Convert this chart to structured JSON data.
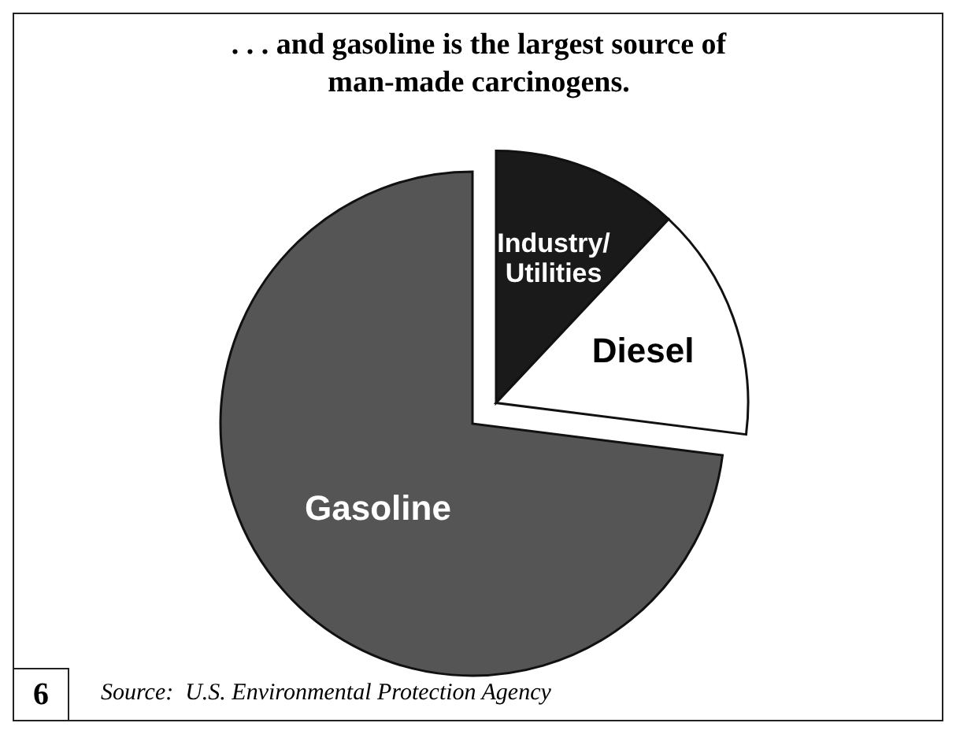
{
  "chart_data": {
    "type": "pie",
    "title": ". . . and gasoline is the largest source of man-made carcinogens.",
    "categories": [
      "Industry/Utilities",
      "Diesel",
      "Gasoline"
    ],
    "values": [
      12,
      15,
      73
    ],
    "colors": [
      "#1a1a1a",
      "#ffffff",
      "#555555"
    ],
    "annotations": [
      "6",
      "Source:  U.S. Environmental Protection Agency"
    ],
    "legend": false
  }
}
